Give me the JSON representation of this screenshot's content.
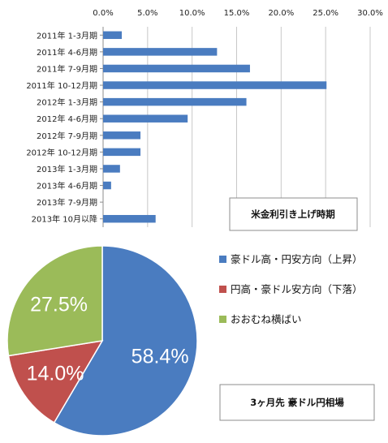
{
  "charts": [
    {
      "type": "bar",
      "orientation": "horizontal",
      "title": "米金利引き上げ時期",
      "categories": [
        "2011年 1-3月期",
        "2011年 4-6月期",
        "2011年 7-9月期",
        "2011年 10-12月期",
        "2012年 1-3月期",
        "2012年 4-6月期",
        "2012年 7-9月期",
        "2012年 10-12月期",
        "2013年 1-3月期",
        "2013年 4-6月期",
        "2013年 7-9月期",
        "2013年 10月以降"
      ],
      "values": [
        2.1,
        12.8,
        16.5,
        25.1,
        16.1,
        9.5,
        4.2,
        4.2,
        1.9,
        0.9,
        0.0,
        5.9
      ],
      "xlim": [
        0,
        30
      ],
      "xticks": [
        "0.0%",
        "5.0%",
        "10.0%",
        "15.0%",
        "20.0%",
        "25.0%",
        "30.0%"
      ],
      "gridlines": true,
      "color": "#4a7cc0"
    },
    {
      "type": "pie",
      "title": "3ヶ月先 豪ドル円相場",
      "slices": [
        {
          "name": "豪ドル高・円安方向（上昇）",
          "value": 58.4,
          "label": "58.4%",
          "color": "#4a7cc0"
        },
        {
          "name": "円高・豪ドル安方向（下落）",
          "value": 14.0,
          "label": "14.0%",
          "color": "#c0504d"
        },
        {
          "name": "おおむね横ばい",
          "value": 27.5,
          "label": "27.5%",
          "color": "#9bbb59"
        }
      ],
      "legend_position": "right"
    }
  ]
}
